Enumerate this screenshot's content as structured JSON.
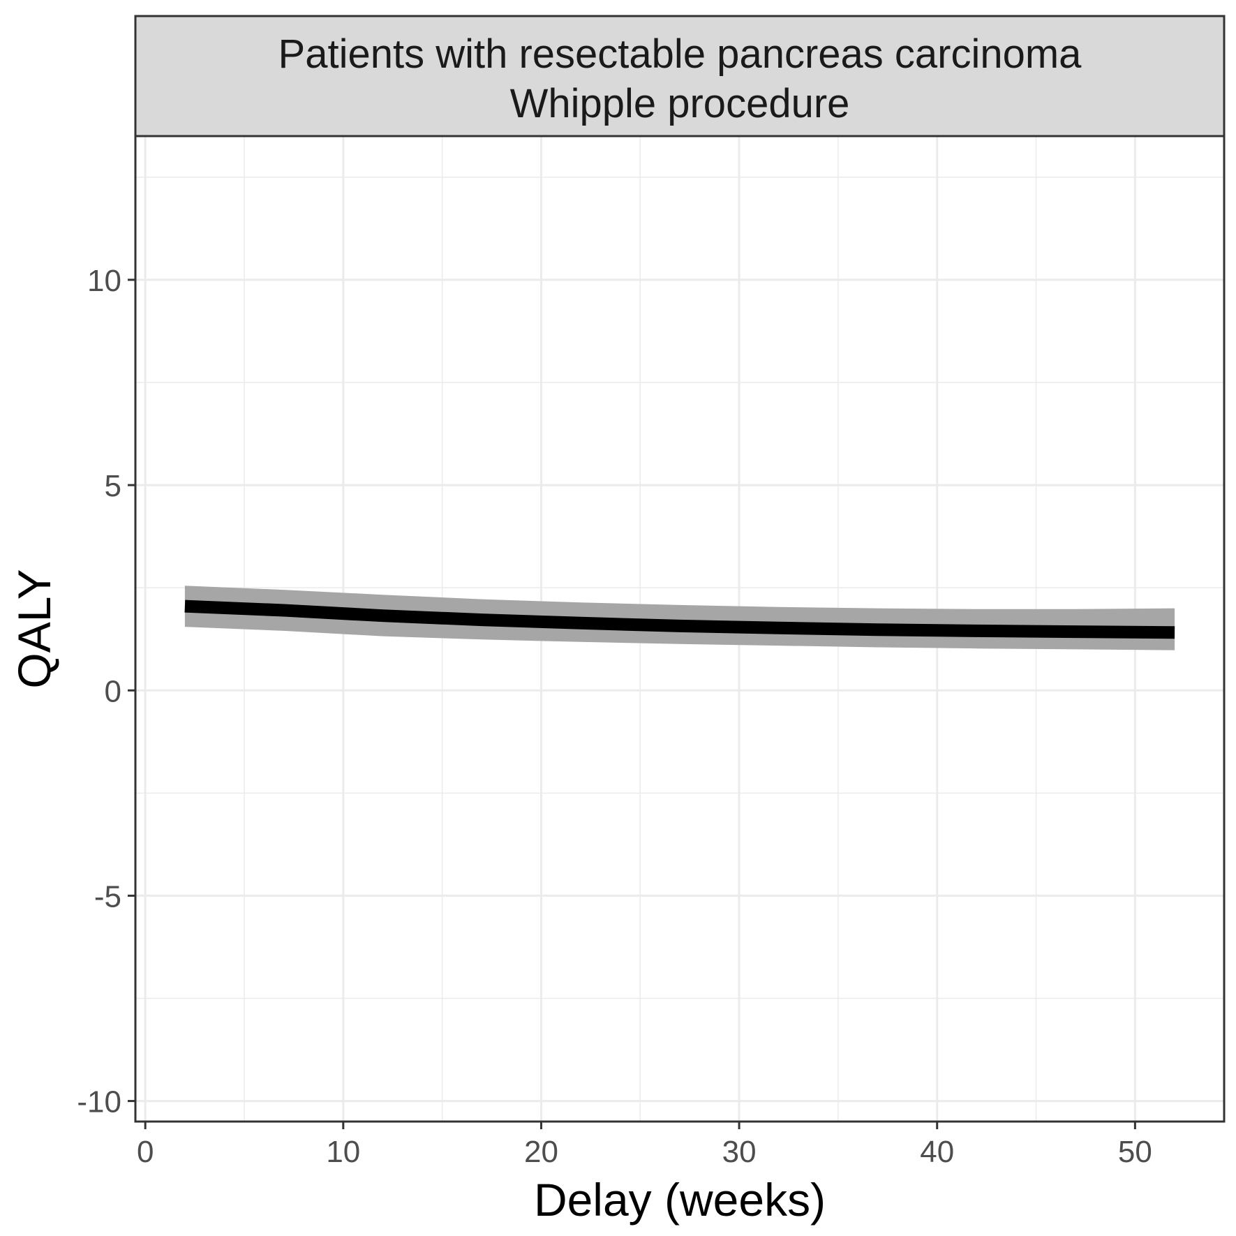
{
  "chart_data": {
    "type": "line",
    "facet_title": [
      "Patients with resectable pancreas carcinoma",
      "Whipple procedure"
    ],
    "xlabel": "Delay (weeks)",
    "ylabel": "QALY",
    "xlim": [
      -0.5,
      54.5
    ],
    "ylim": [
      -10.5,
      13.5
    ],
    "x_ticks": [
      0,
      10,
      20,
      30,
      40,
      50
    ],
    "x_tick_labels": [
      "0",
      "10",
      "20",
      "30",
      "40",
      "50"
    ],
    "y_ticks": [
      -10,
      -5,
      0,
      5,
      10
    ],
    "y_tick_labels": [
      "-10",
      "-5",
      "0",
      "5",
      "10"
    ],
    "grid": true,
    "legend": "none",
    "series": [
      {
        "x": [
          2,
          7,
          12,
          17,
          22,
          27,
          32,
          37,
          42,
          47,
          52
        ],
        "y": [
          2.05,
          1.95,
          1.82,
          1.72,
          1.64,
          1.57,
          1.52,
          1.48,
          1.45,
          1.43,
          1.41
        ],
        "ymin": [
          1.55,
          1.45,
          1.32,
          1.24,
          1.18,
          1.13,
          1.09,
          1.05,
          1.02,
          1.0,
          0.98
        ],
        "ymax": [
          2.55,
          2.45,
          2.33,
          2.22,
          2.14,
          2.08,
          2.03,
          2.0,
          1.98,
          1.98,
          2.0
        ]
      }
    ],
    "colors": {
      "line": "#000000",
      "ribbon": "#a6a6a6",
      "strip_fill": "#d9d9d9",
      "grid": "#ebebeb",
      "border": "#333333"
    }
  }
}
